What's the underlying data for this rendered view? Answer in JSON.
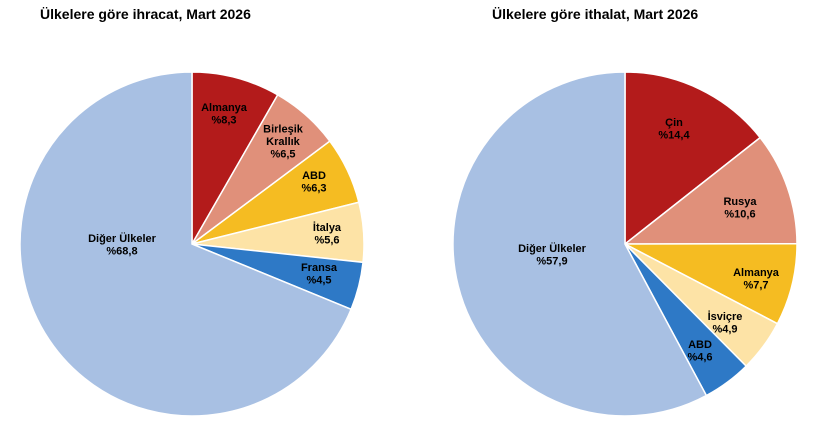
{
  "chart_data": [
    {
      "type": "pie",
      "title": "Ülkelere göre ihracat, Mart 2026",
      "slices": [
        {
          "label": "Almanya",
          "value_text": "%8,3",
          "value": 8.3,
          "color": "#B31B1B",
          "text_color": "#000000"
        },
        {
          "label": "Birleşik\nKrallık",
          "value_text": "%6,5",
          "value": 6.5,
          "color": "#E0907A",
          "text_color": "#000000"
        },
        {
          "label": "ABD",
          "value_text": "%6,3",
          "value": 6.3,
          "color": "#F5BC22",
          "text_color": "#000000"
        },
        {
          "label": "İtalya",
          "value_text": "%5,6",
          "value": 5.6,
          "color": "#FDE3A6",
          "text_color": "#000000"
        },
        {
          "label": "Fransa",
          "value_text": "%4,5",
          "value": 4.5,
          "color": "#2E79C6",
          "text_color": "#000000"
        },
        {
          "label": "Diğer Ülkeler",
          "value_text": "%68,8",
          "value": 68.8,
          "color": "#A8C0E3",
          "text_color": "#000000"
        }
      ]
    },
    {
      "type": "pie",
      "title": "Ülkelere göre ithalat, Mart 2026",
      "slices": [
        {
          "label": "Çin",
          "value_text": "%14,4",
          "value": 14.4,
          "color": "#B31B1B",
          "text_color": "#000000"
        },
        {
          "label": "Rusya",
          "value_text": "%10,6",
          "value": 10.6,
          "color": "#E0907A",
          "text_color": "#000000"
        },
        {
          "label": "Almanya",
          "value_text": "%7,7",
          "value": 7.7,
          "color": "#F5BC22",
          "text_color": "#000000"
        },
        {
          "label": "İsviçre",
          "value_text": "%4,9",
          "value": 4.9,
          "color": "#FDE3A6",
          "text_color": "#000000"
        },
        {
          "label": "ABD",
          "value_text": "%4,6",
          "value": 4.6,
          "color": "#2E79C6",
          "text_color": "#000000"
        },
        {
          "label": "Diğer Ülkeler",
          "value_text": "%57,9",
          "value": 57.9,
          "color": "#A8C0E3",
          "text_color": "#000000"
        }
      ]
    }
  ]
}
